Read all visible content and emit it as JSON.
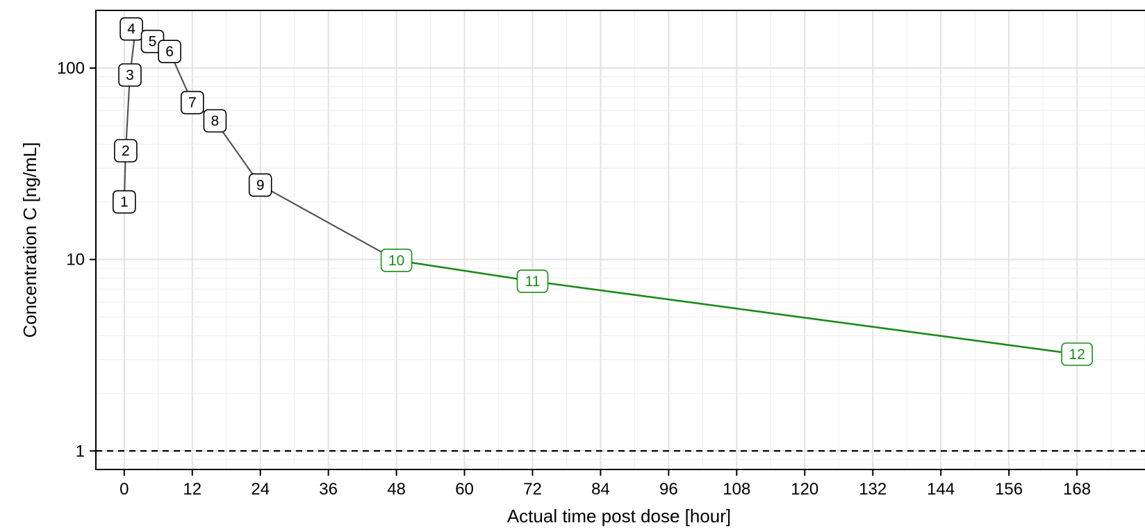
{
  "chart_data": {
    "type": "line",
    "title": "",
    "xlabel": "Actual time post dose [hour]",
    "ylabel": "Concentration C [ng/mL]",
    "x_scale": "linear",
    "y_scale": "log10",
    "xlim": [
      -5,
      180
    ],
    "ylim": [
      0.8,
      200
    ],
    "x_ticks": [
      0,
      12,
      24,
      36,
      48,
      60,
      72,
      84,
      96,
      108,
      120,
      132,
      144,
      156,
      168
    ],
    "x_tick_labels": [
      "0",
      "12",
      "24",
      "36",
      "48",
      "60",
      "72",
      "84",
      "96",
      "108",
      "120",
      "132",
      "144",
      "156",
      "168"
    ],
    "y_ticks": [
      1,
      10,
      100
    ],
    "y_tick_labels": [
      "1",
      "10",
      "100"
    ],
    "grid": true,
    "legend": "none",
    "reference_line": {
      "y": 1,
      "style": "dashed",
      "color": "#000000"
    },
    "series": [
      {
        "color": "#555555",
        "points": [
          {
            "label": "1",
            "x": 0,
            "y": 20
          },
          {
            "label": "2",
            "x": 0.25,
            "y": 37
          },
          {
            "label": "3",
            "x": 1,
            "y": 92
          },
          {
            "label": "4",
            "x": 2,
            "y": 160
          },
          {
            "label": "5",
            "x": 4,
            "y": 140
          },
          {
            "label": "6",
            "x": 8,
            "y": 122
          },
          {
            "label": "7",
            "x": 12,
            "y": 66
          },
          {
            "label": "8",
            "x": 16,
            "y": 53
          },
          {
            "label": "9",
            "x": 24,
            "y": 24.5
          },
          {
            "label": "10",
            "x": 48,
            "y": 9.9
          }
        ]
      },
      {
        "color": "#1a8a1a",
        "points": [
          {
            "label": "10",
            "x": 48,
            "y": 9.9
          },
          {
            "label": "11",
            "x": 72,
            "y": 7.7
          },
          {
            "label": "12",
            "x": 168,
            "y": 3.2
          }
        ]
      }
    ]
  }
}
